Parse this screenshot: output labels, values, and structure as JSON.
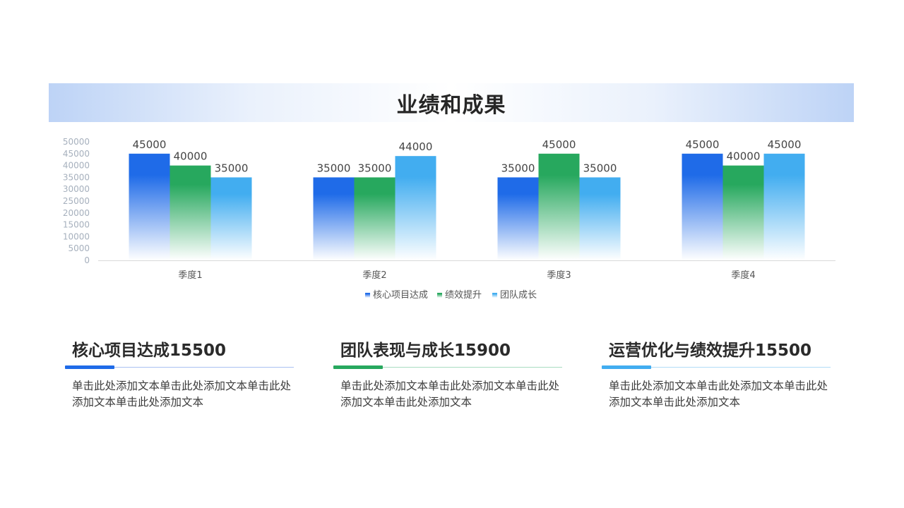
{
  "title": "业绩和成果",
  "colors": {
    "series1": "#1f6be8",
    "series2": "#27a85e",
    "series3": "#42adf0",
    "axis_text": "#a6b0bd",
    "category_text": "#555555"
  },
  "chart_data": {
    "type": "bar",
    "categories": [
      "季度1",
      "季度2",
      "季度3",
      "季度4"
    ],
    "series": [
      {
        "name": "核心项目达成",
        "values": [
          45000,
          35000,
          35000,
          45000
        ]
      },
      {
        "name": "绩效提升",
        "values": [
          40000,
          35000,
          45000,
          40000
        ]
      },
      {
        "name": "团队成长",
        "values": [
          35000,
          44000,
          35000,
          45000
        ]
      }
    ],
    "ylim": [
      0,
      50000
    ],
    "yticks": [
      0,
      5000,
      10000,
      15000,
      20000,
      25000,
      30000,
      35000,
      40000,
      45000,
      50000
    ],
    "xlabel": "",
    "ylabel": "",
    "grid": false,
    "legend": "bottom",
    "data_labels": true
  },
  "cards": [
    {
      "title": "核心项目达成15500",
      "body": "单击此处添加文本单击此处添加文本单击此处添加文本单击此处添加文本",
      "color": "#1f6be8",
      "rule_color": "#a9c1f2"
    },
    {
      "title": "团队表现与成长15900",
      "body": "单击此处添加文本单击此处添加文本单击此处添加文本单击此处添加文本",
      "color": "#27a85e",
      "rule_color": "#a8dcc0"
    },
    {
      "title": "运营优化与绩效提升15500",
      "body": "单击此处添加文本单击此处添加文本单击此处添加文本单击此处添加文本",
      "color": "#42adf0",
      "rule_color": "#b1dcf7"
    }
  ]
}
